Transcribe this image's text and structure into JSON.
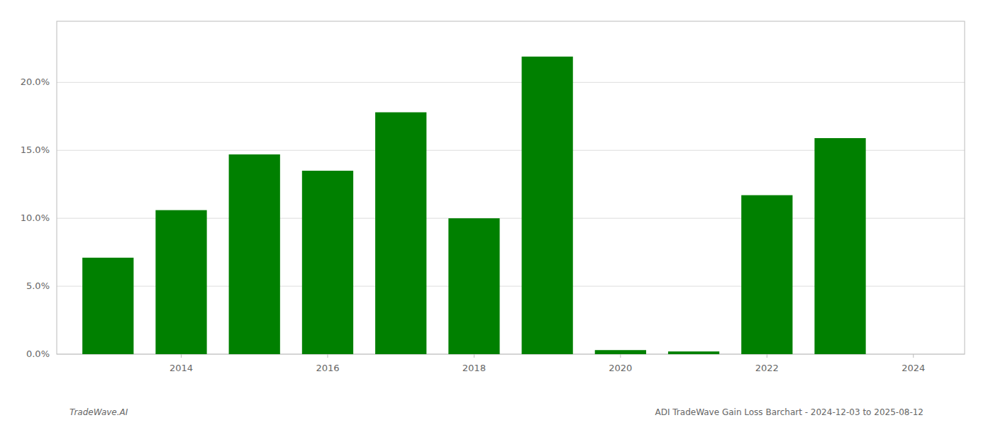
{
  "chart_data": {
    "type": "bar",
    "x": [
      2013,
      2014,
      2015,
      2016,
      2017,
      2018,
      2019,
      2020,
      2021,
      2022,
      2023
    ],
    "values": [
      0.071,
      0.106,
      0.147,
      0.135,
      0.178,
      0.1,
      0.219,
      0.003,
      0.002,
      0.117,
      0.159
    ],
    "color": "#008000",
    "xlim": [
      2012.3,
      2024.7
    ],
    "xticks": [
      2014,
      2016,
      2018,
      2020,
      2022,
      2024
    ],
    "ylim": [
      0,
      0.245
    ],
    "yticks": [
      {
        "value": 0.0,
        "label": "0.0%"
      },
      {
        "value": 0.05,
        "label": "5.0%"
      },
      {
        "value": 0.1,
        "label": "10.0%"
      },
      {
        "value": 0.15,
        "label": "15.0%"
      },
      {
        "value": 0.2,
        "label": "20.0%"
      }
    ],
    "grid": true,
    "annotations": [
      "TradeWave.AI",
      "ADI TradeWave Gain Loss Barchart - 2024-12-03 to 2025-08-12"
    ]
  }
}
